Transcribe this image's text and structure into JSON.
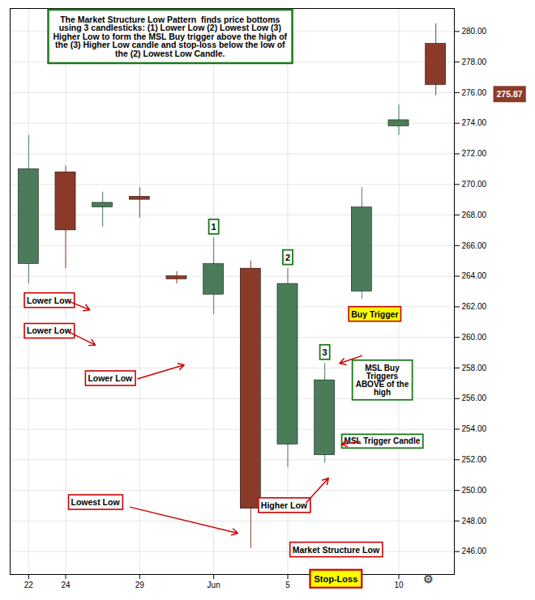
{
  "chart_data": {
    "type": "candlestick",
    "title": "The Market Structure Low Pattern  finds price bottoms\nusing 3 candlesticks: (1) Lower Low (2) Lowest Low (3)\nHigher Low to form the MSL Buy trigger above the high of\nthe (3) Higher Low candle and stop-loss below the low of\nthe (2) Lowest Low Candle.",
    "categories": [
      "22",
      "24",
      null,
      "29",
      null,
      "Jun",
      null,
      "5",
      null,
      null,
      "10",
      null
    ],
    "open": [
      271.0,
      270.8,
      268.8,
      269.2,
      264.0,
      264.8,
      264.5,
      263.5,
      257.2,
      263.0,
      274.2,
      279.2
    ],
    "high": [
      273.2,
      271.2,
      269.5,
      269.8,
      264.3,
      266.5,
      265.0,
      264.5,
      258.3,
      269.8,
      275.2,
      280.5
    ],
    "low": [
      263.5,
      264.5,
      267.2,
      267.8,
      263.5,
      261.5,
      246.2,
      251.5,
      251.8,
      262.5,
      273.2,
      275.8
    ],
    "close": [
      264.8,
      267.0,
      268.5,
      269.0,
      263.8,
      262.8,
      248.8,
      253.0,
      252.3,
      268.5,
      273.8,
      276.5
    ],
    "colors": [
      "#4a7c59",
      "#8B3A2A",
      "#4a7c59",
      "#8B3A2A",
      "#8B3A2A",
      "#4a7c59",
      "#8B3A2A",
      "#4a7c59",
      "#4a7c59",
      "#4a7c59",
      "#4a7c59",
      "#8B3A2A"
    ],
    "candle_labels": [
      null,
      null,
      null,
      null,
      null,
      "1",
      null,
      "2",
      "3",
      null,
      null,
      null
    ],
    "ylim": [
      244.5,
      281.5
    ],
    "yticks": [
      {
        "value": 246,
        "label": "246.00"
      },
      {
        "value": 248,
        "label": "248.00"
      },
      {
        "value": 250,
        "label": "250.00"
      },
      {
        "value": 252,
        "label": "252.00"
      },
      {
        "value": 254,
        "label": "254.00"
      },
      {
        "value": 256,
        "label": "256.00"
      },
      {
        "value": 258,
        "label": "258.00"
      },
      {
        "value": 260,
        "label": "260.00"
      },
      {
        "value": 262,
        "label": "262.00"
      },
      {
        "value": 264,
        "label": "264.00"
      },
      {
        "value": 266,
        "label": "266.00"
      },
      {
        "value": 268,
        "label": "268.00"
      },
      {
        "value": 270,
        "label": "270.00"
      },
      {
        "value": 272,
        "label": "272.00"
      },
      {
        "value": 274,
        "label": "274.00"
      },
      {
        "value": 276,
        "label": "276.00"
      },
      {
        "value": 278,
        "label": "278.00"
      },
      {
        "value": 280,
        "label": "280.00"
      }
    ],
    "grid": true,
    "price_label": {
      "value": 275.87,
      "label": "275.87"
    },
    "annotations": [
      "Lower Low",
      "Lower Low",
      "Lower Low",
      "Lowest Low",
      "Higher Low",
      "Market Structure Low",
      "Buy Trigger",
      "MSL Buy\nTriggers\nABOVE of the\nhigh",
      "MSL Trigger Candle",
      "Stop-Loss",
      "⚙"
    ]
  }
}
